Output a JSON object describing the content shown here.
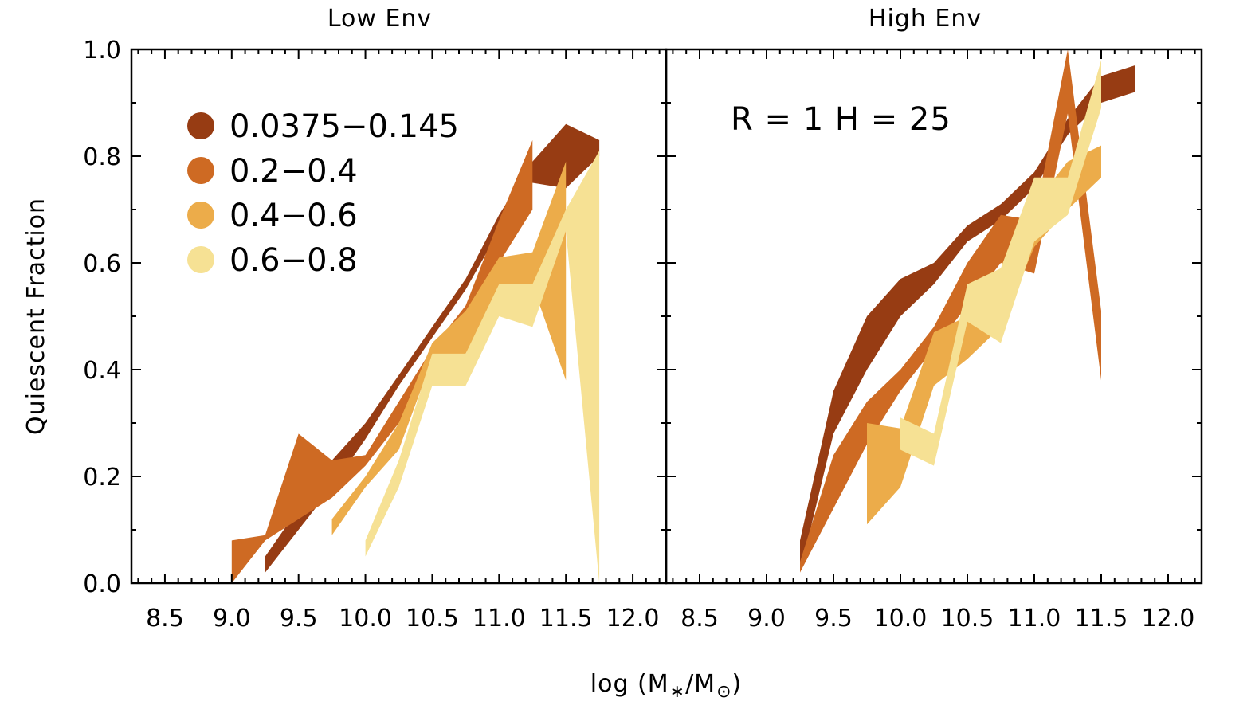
{
  "chart_data": {
    "type": "area",
    "ylabel": "Quiescent Fraction",
    "xlabel": "log (M*/M⊙)",
    "ylim": [
      0.0,
      1.0
    ],
    "xlim": [
      8.25,
      12.25
    ],
    "x_tick_labels": [
      "8.5",
      "9.0",
      "9.5",
      "10.0",
      "10.5",
      "11.0",
      "11.5",
      "12.0"
    ],
    "y_tick_labels": [
      "0.0",
      "0.2",
      "0.4",
      "0.6",
      "0.8",
      "1.0"
    ],
    "legend": {
      "placement": "top-left",
      "entries": [
        {
          "label": "0.0375−0.145",
          "color": "#973C13"
        },
        {
          "label": "0.2−0.4",
          "color": "#CE6A23"
        },
        {
          "label": "0.4−0.6",
          "color": "#ECAC4A"
        },
        {
          "label": "0.6−0.8",
          "color": "#F6E194"
        }
      ]
    },
    "panels": [
      {
        "title": "Low Env",
        "annotation": "",
        "series": [
          {
            "name": "0.0375−0.145",
            "color": "#973C13",
            "x": [
              9.25,
              9.5,
              9.75,
              10.0,
              10.25,
              10.5,
              10.75,
              11.0,
              11.25,
              11.5,
              11.75
            ],
            "lower": [
              0.02,
              0.1,
              0.18,
              0.27,
              0.37,
              0.46,
              0.55,
              0.66,
              0.75,
              0.74,
              0.8
            ],
            "upper": [
              0.05,
              0.14,
              0.23,
              0.3,
              0.39,
              0.48,
              0.57,
              0.69,
              0.79,
              0.86,
              0.83
            ]
          },
          {
            "name": "0.2−0.4",
            "color": "#CE6A23",
            "x": [
              9.0,
              9.25,
              9.5,
              9.75,
              10.0,
              10.25,
              10.5,
              10.75,
              11.0,
              11.25
            ],
            "lower": [
              0.0,
              0.08,
              0.12,
              0.16,
              0.22,
              0.3,
              0.4,
              0.46,
              0.6,
              0.7
            ],
            "upper": [
              0.08,
              0.09,
              0.28,
              0.23,
              0.24,
              0.34,
              0.44,
              0.52,
              0.68,
              0.83
            ]
          },
          {
            "name": "0.4−0.6",
            "color": "#ECAC4A",
            "x": [
              9.75,
              10.0,
              10.25,
              10.5,
              10.75,
              11.0,
              11.25,
              11.5
            ],
            "lower": [
              0.09,
              0.18,
              0.25,
              0.42,
              0.43,
              0.55,
              0.56,
              0.38
            ],
            "upper": [
              0.12,
              0.2,
              0.3,
              0.45,
              0.51,
              0.61,
              0.62,
              0.79
            ]
          },
          {
            "name": "0.6−0.8",
            "color": "#F6E194",
            "x": [
              10.0,
              10.25,
              10.5,
              10.75,
              11.0,
              11.25,
              11.5,
              11.75
            ],
            "lower": [
              0.05,
              0.18,
              0.37,
              0.37,
              0.5,
              0.48,
              0.66,
              0.0
            ],
            "upper": [
              0.08,
              0.23,
              0.43,
              0.43,
              0.56,
              0.56,
              0.7,
              0.81
            ]
          }
        ]
      },
      {
        "title": "High Env",
        "annotation": "R = 1 H = 25",
        "series": [
          {
            "name": "0.0375−0.145",
            "color": "#973C13",
            "x": [
              9.25,
              9.5,
              9.75,
              10.0,
              10.25,
              10.5,
              10.75,
              11.0,
              11.25,
              11.5,
              11.75
            ],
            "lower": [
              0.02,
              0.28,
              0.4,
              0.5,
              0.56,
              0.64,
              0.68,
              0.74,
              0.84,
              0.9,
              0.92
            ],
            "upper": [
              0.08,
              0.36,
              0.5,
              0.57,
              0.6,
              0.67,
              0.71,
              0.77,
              0.87,
              0.95,
              0.97
            ]
          },
          {
            "name": "0.2−0.4",
            "color": "#CE6A23",
            "x": [
              9.25,
              9.5,
              9.75,
              10.0,
              10.25,
              10.5,
              10.75,
              11.0,
              11.25,
              11.5
            ],
            "lower": [
              0.02,
              0.14,
              0.26,
              0.36,
              0.44,
              0.52,
              0.6,
              0.58,
              0.88,
              0.38
            ],
            "upper": [
              0.04,
              0.24,
              0.34,
              0.4,
              0.48,
              0.6,
              0.69,
              0.68,
              1.0,
              0.51
            ]
          },
          {
            "name": "0.4−0.6",
            "color": "#ECAC4A",
            "x": [
              9.75,
              10.0,
              10.25,
              10.5,
              10.75,
              11.0,
              11.25,
              11.5
            ],
            "lower": [
              0.11,
              0.18,
              0.37,
              0.42,
              0.48,
              0.63,
              0.7,
              0.76
            ],
            "upper": [
              0.3,
              0.29,
              0.47,
              0.5,
              0.56,
              0.71,
              0.79,
              0.82
            ]
          },
          {
            "name": "0.6−0.8",
            "color": "#F6E194",
            "x": [
              10.0,
              10.25,
              10.5,
              10.75,
              11.0,
              11.25,
              11.5
            ],
            "lower": [
              0.25,
              0.22,
              0.49,
              0.45,
              0.64,
              0.69,
              0.89
            ],
            "upper": [
              0.31,
              0.28,
              0.56,
              0.59,
              0.76,
              0.76,
              0.98
            ]
          }
        ]
      }
    ]
  }
}
